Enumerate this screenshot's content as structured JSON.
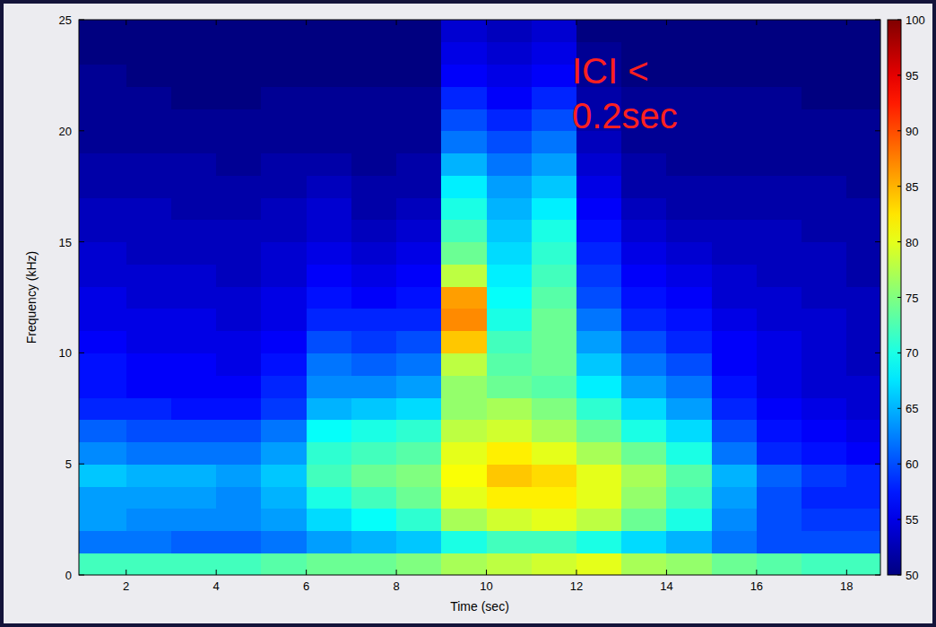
{
  "chart_data": {
    "type": "heatmap",
    "x_label": "Time (sec)",
    "y_label": "Frequency (kHz)",
    "annotation": "ICI < 0.2sec",
    "xlim": [
      0.95,
      18.75
    ],
    "ylim": [
      0,
      25
    ],
    "xticks": [
      2,
      4,
      6,
      8,
      10,
      12,
      14,
      16,
      18
    ],
    "yticks": [
      0,
      5,
      10,
      15,
      20,
      25
    ],
    "x_edges": [
      0.95,
      2,
      3,
      4,
      5,
      6,
      7,
      8,
      9,
      10,
      11,
      12,
      13,
      14,
      15,
      16,
      17,
      18,
      18.75
    ],
    "y_edges": [
      0,
      1,
      2,
      3,
      4,
      5,
      6,
      7,
      8,
      9,
      10,
      11,
      12,
      13,
      14,
      15,
      16,
      17,
      18,
      19,
      20,
      21,
      22,
      23,
      24,
      25
    ],
    "cells": [
      [
        72,
        72,
        72,
        72,
        73,
        74,
        74,
        75,
        77,
        78,
        79,
        80,
        77,
        76,
        74,
        73,
        72,
        72
      ],
      [
        62,
        62,
        61,
        61,
        62,
        64,
        65,
        66,
        70,
        72,
        72,
        70,
        67,
        65,
        62,
        60,
        60,
        60
      ],
      [
        64,
        63,
        63,
        63,
        64,
        67,
        69,
        71,
        77,
        79,
        80,
        78,
        74,
        70,
        63,
        60,
        59,
        59
      ],
      [
        64,
        64,
        64,
        63,
        65,
        70,
        72,
        74,
        80,
        82,
        82,
        80,
        76,
        72,
        64,
        60,
        58,
        58
      ],
      [
        66,
        65,
        65,
        64,
        66,
        72,
        74,
        75,
        81,
        84,
        83,
        80,
        77,
        73,
        65,
        61,
        59,
        58
      ],
      [
        63,
        62,
        62,
        62,
        64,
        71,
        72,
        73,
        80,
        82,
        80,
        77,
        74,
        70,
        62,
        58,
        57,
        56
      ],
      [
        61,
        60,
        60,
        60,
        62,
        69,
        70,
        71,
        78,
        79,
        77,
        74,
        70,
        67,
        60,
        57,
        56,
        55
      ],
      [
        58,
        58,
        57,
        57,
        59,
        65,
        66,
        67,
        76,
        77,
        75,
        71,
        67,
        64,
        58,
        56,
        55,
        54
      ],
      [
        57,
        56,
        56,
        56,
        58,
        63,
        63,
        64,
        76,
        74,
        73,
        68,
        64,
        62,
        57,
        55,
        54,
        54
      ],
      [
        57,
        56,
        56,
        55,
        57,
        62,
        61,
        62,
        78,
        73,
        74,
        66,
        62,
        60,
        56,
        55,
        54,
        53
      ],
      [
        56,
        55,
        55,
        55,
        56,
        60,
        59,
        60,
        84,
        72,
        74,
        64,
        60,
        58,
        56,
        55,
        54,
        53
      ],
      [
        55,
        55,
        55,
        54,
        55,
        58,
        58,
        58,
        87,
        70,
        74,
        62,
        58,
        57,
        55,
        54,
        54,
        53
      ],
      [
        55,
        54,
        54,
        54,
        55,
        57,
        56,
        57,
        86,
        69,
        73,
        60,
        57,
        56,
        54,
        54,
        53,
        53
      ],
      [
        54,
        54,
        54,
        53,
        54,
        56,
        55,
        56,
        78,
        68,
        72,
        59,
        56,
        55,
        54,
        53,
        53,
        52
      ],
      [
        54,
        53,
        53,
        53,
        54,
        55,
        54,
        55,
        74,
        67,
        71,
        58,
        55,
        54,
        53,
        53,
        53,
        52
      ],
      [
        53,
        53,
        53,
        53,
        53,
        54,
        53,
        54,
        72,
        66,
        70,
        57,
        54,
        53,
        53,
        53,
        52,
        52
      ],
      [
        53,
        53,
        52,
        52,
        53,
        54,
        52,
        53,
        70,
        65,
        68,
        56,
        53,
        52,
        52,
        52,
        52,
        52
      ],
      [
        52,
        52,
        52,
        52,
        52,
        53,
        52,
        52,
        68,
        64,
        66,
        55,
        52,
        52,
        52,
        52,
        52,
        51
      ],
      [
        52,
        52,
        52,
        51,
        52,
        52,
        51,
        52,
        65,
        62,
        64,
        54,
        52,
        51,
        51,
        51,
        51,
        51
      ],
      [
        51,
        51,
        51,
        51,
        51,
        51,
        51,
        51,
        62,
        60,
        62,
        53,
        51,
        51,
        51,
        51,
        51,
        51
      ],
      [
        51,
        51,
        51,
        51,
        51,
        51,
        51,
        51,
        60,
        58,
        60,
        52,
        51,
        51,
        51,
        51,
        51,
        51
      ],
      [
        51,
        51,
        50,
        50,
        51,
        51,
        51,
        51,
        58,
        56,
        58,
        52,
        51,
        51,
        51,
        51,
        50,
        50
      ],
      [
        51,
        50,
        50,
        50,
        50,
        50,
        50,
        50,
        56,
        55,
        56,
        51,
        50,
        50,
        50,
        50,
        50,
        50
      ],
      [
        50,
        50,
        50,
        50,
        50,
        50,
        50,
        50,
        55,
        54,
        55,
        51,
        50,
        50,
        50,
        50,
        50,
        50
      ],
      [
        50,
        50,
        50,
        50,
        50,
        50,
        50,
        50,
        54,
        53,
        54,
        50,
        50,
        50,
        50,
        50,
        50,
        50
      ]
    ],
    "colorbar": {
      "lim": [
        50,
        100
      ],
      "ticks": [
        50,
        55,
        60,
        65,
        70,
        75,
        80,
        85,
        90,
        95,
        100
      ]
    }
  }
}
